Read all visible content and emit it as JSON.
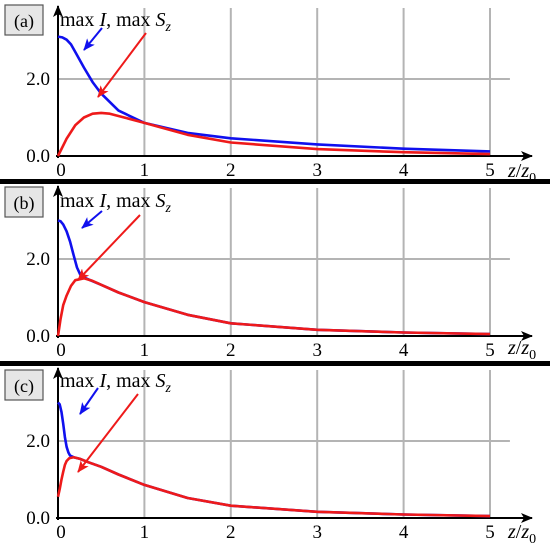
{
  "panels": [
    {
      "label": "(a)",
      "annotation": {
        "part1": "max ",
        "i_sym": "I",
        "part2": ", max ",
        "s_sym": "S",
        "s_sub": "z"
      },
      "xlabel": {
        "z": "z",
        "slash": "/",
        "z0": "z",
        "z0_sub": "0"
      }
    },
    {
      "label": "(b)",
      "annotation": {
        "part1": "max ",
        "i_sym": "I",
        "part2": ", max ",
        "s_sym": "S",
        "s_sub": "z"
      },
      "xlabel": {
        "z": "z",
        "slash": "/",
        "z0": "z",
        "z0_sub": "0"
      }
    },
    {
      "label": "(c)",
      "annotation": {
        "part1": "max ",
        "i_sym": "I",
        "part2": ", max ",
        "s_sym": "S",
        "s_sub": "z"
      },
      "xlabel": {
        "z": "z",
        "slash": "/",
        "z0": "z",
        "z0_sub": "0"
      }
    }
  ],
  "colors": {
    "maxI": "#1010ee",
    "maxSz": "#ee1a1a",
    "grid": "#b4b4b4",
    "axis": "#000000",
    "separator": "#000000"
  },
  "chart_data": [
    {
      "type": "line",
      "title": "",
      "xlabel": "z/z0",
      "ylabel": "",
      "xlim": [
        0,
        5.3
      ],
      "ylim": [
        0,
        3.4
      ],
      "xticks": [
        0,
        1,
        2,
        3,
        4,
        5
      ],
      "yticks": [
        0.0,
        2.0
      ],
      "xtick_labels": [
        "0",
        "1",
        "2",
        "3",
        "4",
        "5"
      ],
      "ytick_labels": [
        "0.0",
        "2.0"
      ],
      "grid": true,
      "series": [
        {
          "name": "max I",
          "x": [
            0,
            0.05,
            0.1,
            0.15,
            0.2,
            0.3,
            0.4,
            0.5,
            0.7,
            1.0,
            1.5,
            2.0,
            3.0,
            4.0,
            5.0
          ],
          "y": [
            3.1,
            3.08,
            3.02,
            2.9,
            2.7,
            2.3,
            1.92,
            1.62,
            1.18,
            0.86,
            0.6,
            0.46,
            0.3,
            0.19,
            0.12
          ]
        },
        {
          "name": "max Sz",
          "x": [
            0,
            0.1,
            0.2,
            0.3,
            0.4,
            0.5,
            0.6,
            0.8,
            1.0,
            1.5,
            2.0,
            3.0,
            4.0,
            5.0
          ],
          "y": [
            0.0,
            0.45,
            0.8,
            1.0,
            1.1,
            1.12,
            1.1,
            0.98,
            0.86,
            0.55,
            0.35,
            0.18,
            0.1,
            0.05
          ]
        }
      ]
    },
    {
      "type": "line",
      "title": "",
      "xlabel": "z/z0",
      "ylabel": "",
      "xlim": [
        0,
        5.3
      ],
      "ylim": [
        0,
        3.4
      ],
      "xticks": [
        0,
        1,
        2,
        3,
        4,
        5
      ],
      "yticks": [
        0.0,
        2.0
      ],
      "xtick_labels": [
        "0",
        "1",
        "2",
        "3",
        "4",
        "5"
      ],
      "ytick_labels": [
        "0.0",
        "2.0"
      ],
      "grid": true,
      "series": [
        {
          "name": "max I",
          "x": [
            0,
            0.03,
            0.06,
            0.1,
            0.14,
            0.18,
            0.22,
            0.26,
            0.3,
            0.5,
            0.7,
            1.0,
            1.5,
            2.0,
            3.0,
            4.0,
            5.0
          ],
          "y": [
            3.0,
            2.98,
            2.9,
            2.72,
            2.45,
            2.1,
            1.78,
            1.58,
            1.52,
            1.33,
            1.13,
            0.88,
            0.55,
            0.33,
            0.16,
            0.09,
            0.05
          ]
        },
        {
          "name": "max Sz",
          "x": [
            0,
            0.03,
            0.06,
            0.1,
            0.15,
            0.2,
            0.3,
            0.4,
            0.5,
            0.7,
            1.0,
            1.5,
            2.0,
            3.0,
            4.0,
            5.0
          ],
          "y": [
            0.0,
            0.45,
            0.8,
            1.05,
            1.3,
            1.45,
            1.5,
            1.43,
            1.33,
            1.13,
            0.88,
            0.55,
            0.33,
            0.16,
            0.09,
            0.05
          ]
        }
      ]
    },
    {
      "type": "line",
      "title": "",
      "xlabel": "z/z0",
      "ylabel": "",
      "xlim": [
        0,
        5.3
      ],
      "ylim": [
        0,
        3.4
      ],
      "xticks": [
        0,
        1,
        2,
        3,
        4,
        5
      ],
      "yticks": [
        0.0,
        2.0
      ],
      "xtick_labels": [
        "0",
        "1",
        "2",
        "3",
        "4",
        "5"
      ],
      "ytick_labels": [
        "0.0",
        "2.0"
      ],
      "grid": true,
      "series": [
        {
          "name": "max I",
          "x": [
            0,
            0.02,
            0.04,
            0.06,
            0.08,
            0.1,
            0.12,
            0.14,
            0.18,
            0.25,
            0.35,
            0.5,
            0.7,
            1.0,
            1.5,
            2.0,
            3.0,
            4.0,
            5.0
          ],
          "y": [
            3.0,
            2.95,
            2.75,
            2.45,
            2.1,
            1.85,
            1.7,
            1.62,
            1.58,
            1.54,
            1.45,
            1.33,
            1.13,
            0.86,
            0.52,
            0.32,
            0.16,
            0.09,
            0.05
          ]
        },
        {
          "name": "max Sz",
          "x": [
            0,
            0.02,
            0.04,
            0.06,
            0.08,
            0.1,
            0.13,
            0.18,
            0.25,
            0.35,
            0.5,
            0.7,
            1.0,
            1.5,
            2.0,
            3.0,
            4.0,
            5.0
          ],
          "y": [
            0.55,
            0.75,
            1.0,
            1.2,
            1.38,
            1.48,
            1.55,
            1.58,
            1.54,
            1.45,
            1.33,
            1.13,
            0.86,
            0.52,
            0.32,
            0.16,
            0.09,
            0.05
          ]
        }
      ]
    }
  ]
}
